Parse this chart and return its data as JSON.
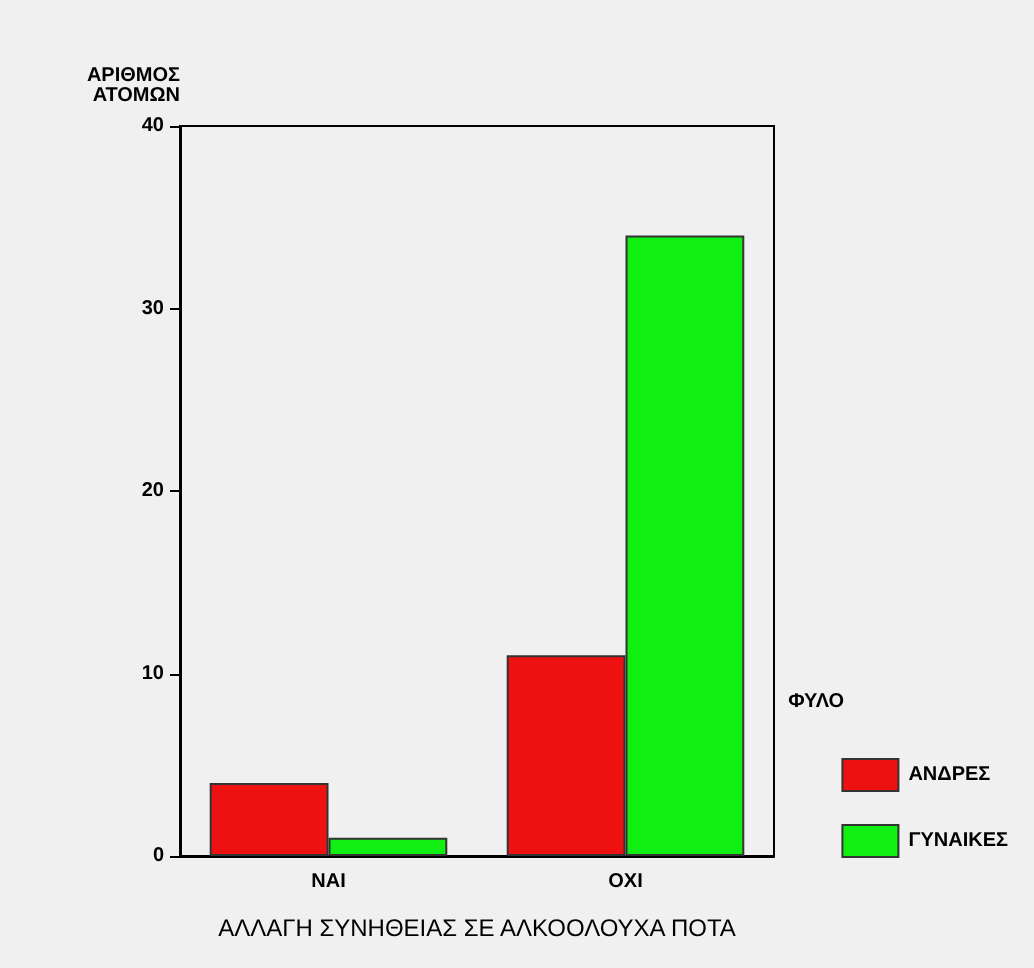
{
  "chart_data": {
    "type": "bar",
    "ylabel": "ΑΡΙΘΜΟΣ ΑΤΟΜΩΝ",
    "xlabel": "ΑΛΛΑΓΗ ΣΥΝΗΘΕΙΑΣ ΣΕ ΑΛΚΟΟΛΟΥΧΑ ΠΟΤΑ",
    "legend_title": "ΦΥΛΟ",
    "categories": [
      "ΝΑΙ",
      "ΟΧΙ"
    ],
    "series": [
      {
        "name": "ΑΝΔΡΕΣ",
        "color": "#ee1111",
        "values": [
          4,
          11
        ]
      },
      {
        "name": "ΓΥΝΑΙΚΕΣ",
        "color": "#11ee11",
        "values": [
          1,
          34
        ]
      }
    ],
    "ylim": [
      0,
      40
    ],
    "yticks": [
      0,
      10,
      20,
      30,
      40
    ],
    "grid": false,
    "legend": "bottom right"
  }
}
